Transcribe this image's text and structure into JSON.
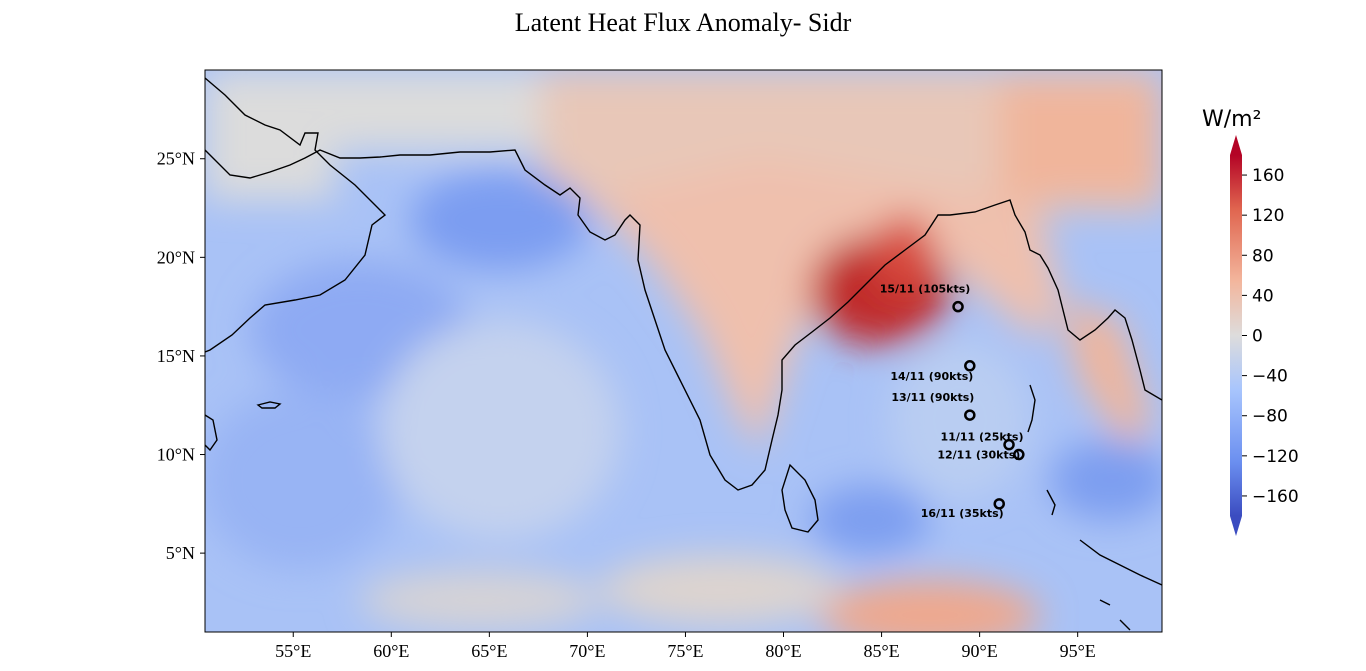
{
  "title": "Latent Heat Flux Anomaly- Sidr",
  "map": {
    "extent": {
      "lon_min": 50.5,
      "lon_max": 99.3,
      "lat_min": 1,
      "lat_max": 29.5
    },
    "x_ticks": [
      {
        "lon": 55,
        "label": "55°E"
      },
      {
        "lon": 60,
        "label": "60°E"
      },
      {
        "lon": 65,
        "label": "65°E"
      },
      {
        "lon": 70,
        "label": "70°E"
      },
      {
        "lon": 75,
        "label": "75°E"
      },
      {
        "lon": 80,
        "label": "80°E"
      },
      {
        "lon": 85,
        "label": "85°E"
      },
      {
        "lon": 90,
        "label": "90°E"
      },
      {
        "lon": 95,
        "label": "95°E"
      }
    ],
    "y_ticks": [
      {
        "lat": 5,
        "label": "5°N"
      },
      {
        "lat": 10,
        "label": "10°N"
      },
      {
        "lat": 15,
        "label": "15°N"
      },
      {
        "lat": 20,
        "label": "20°N"
      },
      {
        "lat": 25,
        "label": "25°N"
      }
    ],
    "track": [
      {
        "date": "15/11",
        "label": "15/11 (105kts)",
        "lon": 88.9,
        "lat": 17.5
      },
      {
        "date": "14/11",
        "label": "14/11 (90kts)",
        "lon": 89.5,
        "lat": 14.5
      },
      {
        "date": "13/11",
        "label": "13/11 (90kts)",
        "lon": 89.5,
        "lat": 12.0
      },
      {
        "date": "11/11",
        "label": "11/11 (25kts)",
        "lon": 91.5,
        "lat": 10.5
      },
      {
        "date": "12/11",
        "label": "12/11 (30kts)",
        "lon": 92.0,
        "lat": 10.0
      },
      {
        "date": "16/11",
        "label": "16/11 (35kts)",
        "lon": 91.0,
        "lat": 7.5
      }
    ],
    "colors": {
      "land_neutral": "#dcdcdc",
      "ocean_blue": "#a9c2f7",
      "ocean_deep": "#7b9ef2",
      "warm": "#f2b39a",
      "hot": "#c0202a"
    }
  },
  "colorbar": {
    "title": "W/m²",
    "ticks": [
      "160",
      "120",
      "80",
      "40",
      "0",
      "−40",
      "−80",
      "−120",
      "−160"
    ],
    "range": [
      -180,
      180
    ],
    "colormap": "coolwarm"
  }
}
